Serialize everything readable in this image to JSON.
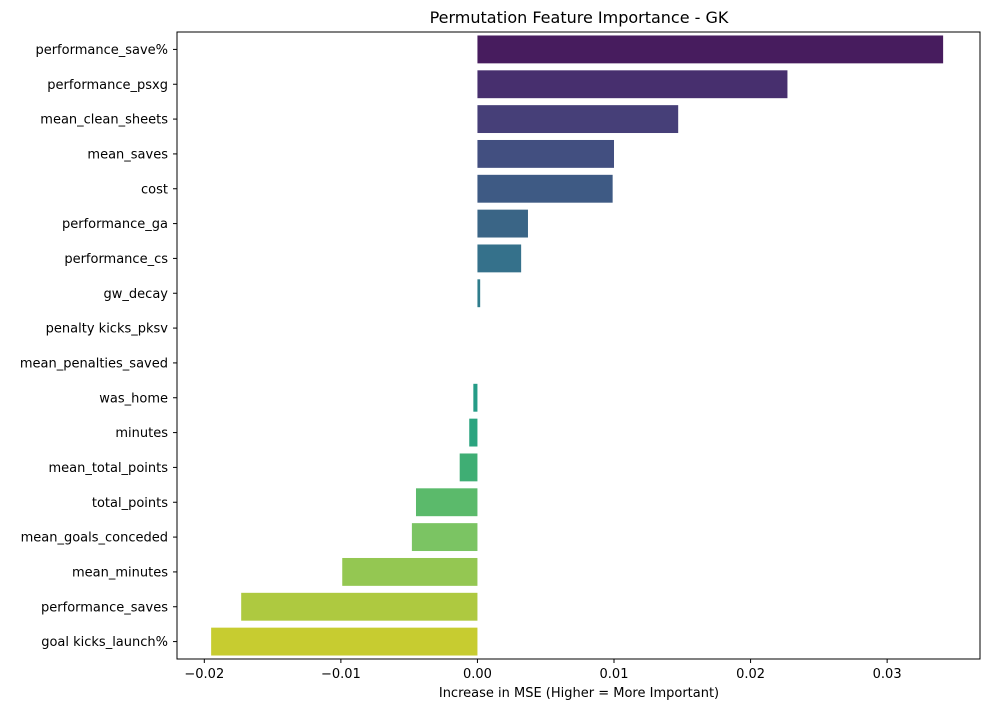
{
  "chart_data": {
    "type": "bar",
    "orientation": "horizontal",
    "title": "Permutation Feature Importance - GK",
    "xlabel": "Increase in MSE (Higher = More Important)",
    "ylabel": "",
    "xlim": [
      -0.022,
      0.0368
    ],
    "xticks": [
      -0.02,
      -0.01,
      0.0,
      0.01,
      0.02,
      0.03
    ],
    "xtick_labels": [
      "−0.02",
      "−0.01",
      "0.00",
      "0.01",
      "0.02",
      "0.03"
    ],
    "grid": false,
    "legend": "none",
    "palette": "viridis",
    "categories": [
      "performance_save%",
      "performance_psxg",
      "mean_clean_sheets",
      "mean_saves",
      "cost",
      "performance_ga",
      "performance_cs",
      "gw_decay",
      "penalty kicks_pksv",
      "mean_penalties_saved",
      "was_home",
      "minutes",
      "mean_total_points",
      "total_points",
      "mean_goals_conceded",
      "mean_minutes",
      "performance_saves",
      "goal kicks_launch%"
    ],
    "values": [
      0.0341,
      0.0227,
      0.0147,
      0.01,
      0.0099,
      0.0037,
      0.0032,
      0.0002,
      0.0,
      0.0,
      -0.0003,
      -0.0006,
      -0.0013,
      -0.0045,
      -0.0048,
      -0.0099,
      -0.0173,
      -0.0195
    ],
    "colors": [
      "#471c5e",
      "#472f6e",
      "#463f78",
      "#424f80",
      "#3e5a84",
      "#3a6586",
      "#35718b",
      "#2f7c8c",
      "#2b878b",
      "#27918a",
      "#259c87",
      "#2ba47f",
      "#3fae74",
      "#5bba6b",
      "#7bc463",
      "#94c752",
      "#aec940",
      "#c7cc30"
    ]
  }
}
